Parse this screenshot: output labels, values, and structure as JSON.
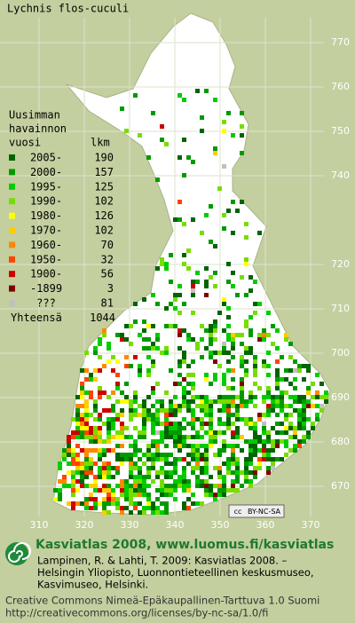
{
  "title": "Lychnis flos-cuculi",
  "legend": {
    "heading": [
      "Uusimman",
      "havainnon",
      "vuosi"
    ],
    "count_heading": "lkm",
    "items": [
      {
        "label": "2005-",
        "count": 190,
        "color": "#006400"
      },
      {
        "label": "2000-",
        "count": 157,
        "color": "#009a00"
      },
      {
        "label": "1995-",
        "count": 125,
        "color": "#00cc00"
      },
      {
        "label": "1990-",
        "count": 102,
        "color": "#77dd00"
      },
      {
        "label": "1980-",
        "count": 126,
        "color": "#ffff00"
      },
      {
        "label": "1970-",
        "count": 102,
        "color": "#ffcc00"
      },
      {
        "label": "1960-",
        "count": 70,
        "color": "#ff8800"
      },
      {
        "label": "1950-",
        "count": 32,
        "color": "#ff4400"
      },
      {
        "label": "1900-",
        "count": 56,
        "color": "#cc0000"
      },
      {
        "label": "-1899",
        "count": 3,
        "color": "#800000"
      },
      {
        "label": "???",
        "count": 81,
        "color": "#c0c0c0"
      }
    ],
    "total_label": "Yhteensä",
    "total": 1044
  },
  "map": {
    "yticks": [
      770,
      760,
      750,
      740,
      720,
      710,
      700,
      690,
      680,
      670
    ],
    "xticks": [
      310,
      320,
      330,
      340,
      350,
      360,
      370
    ]
  },
  "license_badge": {
    "icon": "cc",
    "text": "BY-NC-SA"
  },
  "credits": {
    "headline": "Kasviatlas 2008, www.luomus.fi/kasviatlas",
    "citation": [
      "Lampinen, R. & Lahti, T. 2009: Kasviatlas 2008. –",
      "Helsingin Yliopisto, Luonnontieteellinen keskusmuseo,",
      "Kasvimuseo, Helsinki."
    ],
    "license": [
      "Creative Commons Nimeä-Epäkaupallinen-Tarttuva 1.0 Suomi",
      "http://creativecommons.org/licenses/by-nc-sa/1.0/fi"
    ]
  }
}
